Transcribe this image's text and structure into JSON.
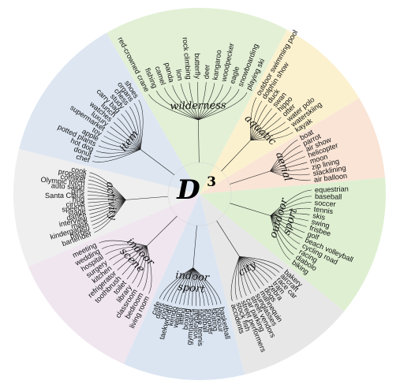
{
  "title": {
    "main": "D",
    "sup": "3"
  },
  "categories": [
    {
      "key": "wilderness",
      "lines": [
        "wilderness"
      ],
      "color": "#e3f0d6",
      "items": [
        "red-crowned crane",
        "fishing",
        "camel",
        "panda",
        "lion",
        "rock climbing",
        "butterfly",
        "deer",
        "kangaroo",
        "woodpecker",
        "eagle",
        "snowboarding",
        "playing ski"
      ]
    },
    {
      "key": "aquatic",
      "lines": [
        "aquatic"
      ],
      "color": "#fbf1cf",
      "items": [
        "outdoor swimming pool",
        "dolphin show",
        "duck",
        "swan",
        "hippo",
        "otter",
        "water polo",
        "waterskiing",
        "kayak"
      ]
    },
    {
      "key": "aerial",
      "lines": [
        "aerial"
      ],
      "color": "#f9e4d6",
      "items": [
        "boat",
        "parrot",
        "air show",
        "helicopter",
        "moon",
        "zip lining",
        "slacklining",
        "air balloon"
      ]
    },
    {
      "key": "outdoor-sport",
      "lines": [
        "outdoor",
        "sport"
      ],
      "color": "#dff0d2",
      "items": [
        "equestrian",
        "baseball",
        "soccer",
        "tennis",
        "skis",
        "swing",
        "frisbee",
        "golf",
        "beach volleyball",
        "cycling road",
        "racing",
        "diabolo",
        "biking"
      ]
    },
    {
      "key": "city",
      "lines": [
        "city"
      ],
      "color": "#e7e7e7",
      "items": [
        "bakery",
        "aircraft",
        "race car",
        "tram",
        "zebra",
        "dogs",
        "mannequin",
        "sunglasses",
        "street vendors",
        "car parking",
        "street performers",
        "stock fish",
        "accidents"
      ]
    },
    {
      "key": "indoor-sport",
      "lines": [
        "indoor",
        "sport"
      ],
      "color": "#dbe5f2",
      "items": [
        "basketball",
        "parkour",
        "skating",
        "snooker",
        "football",
        "table tennis",
        "volleyball",
        "gymnastics",
        "boxing",
        "lifting",
        "weight",
        "kendo",
        "taekwondo",
        "yoga",
        "darts",
        "cafe"
      ]
    },
    {
      "key": "indoor-scene",
      "lines": [
        "indoor",
        "scene"
      ],
      "color": "#efe6ef",
      "items": [
        "living room",
        "bedroom",
        "classroom",
        "library",
        "toilet",
        "toothbrush",
        "refrigerator",
        "kitchen",
        "surgery",
        "hospital",
        "wedding",
        "meeting"
      ]
    },
    {
      "key": "activity",
      "lines": [
        "activity"
      ],
      "color": "#efefef",
      "items": [
        "bartender",
        "barber",
        "kindergarten",
        "mask",
        "interview",
        "dance",
        "stage",
        "speech",
        "circus",
        "hug",
        "Santa Claus",
        "girls",
        "auto salon",
        "Olympic torch",
        "comiket",
        "proposal",
        "cook"
      ]
    },
    {
      "key": "item",
      "lines": [
        "item"
      ],
      "color": "#dde6f1",
      "items": [
        "chef",
        "donut",
        "hot dog",
        "potted plants",
        "apple",
        "toy",
        "supermarket",
        "luxury",
        "watches",
        "lunch",
        "carry bag",
        "study",
        "chess",
        "organs",
        "shoes"
      ]
    }
  ]
}
